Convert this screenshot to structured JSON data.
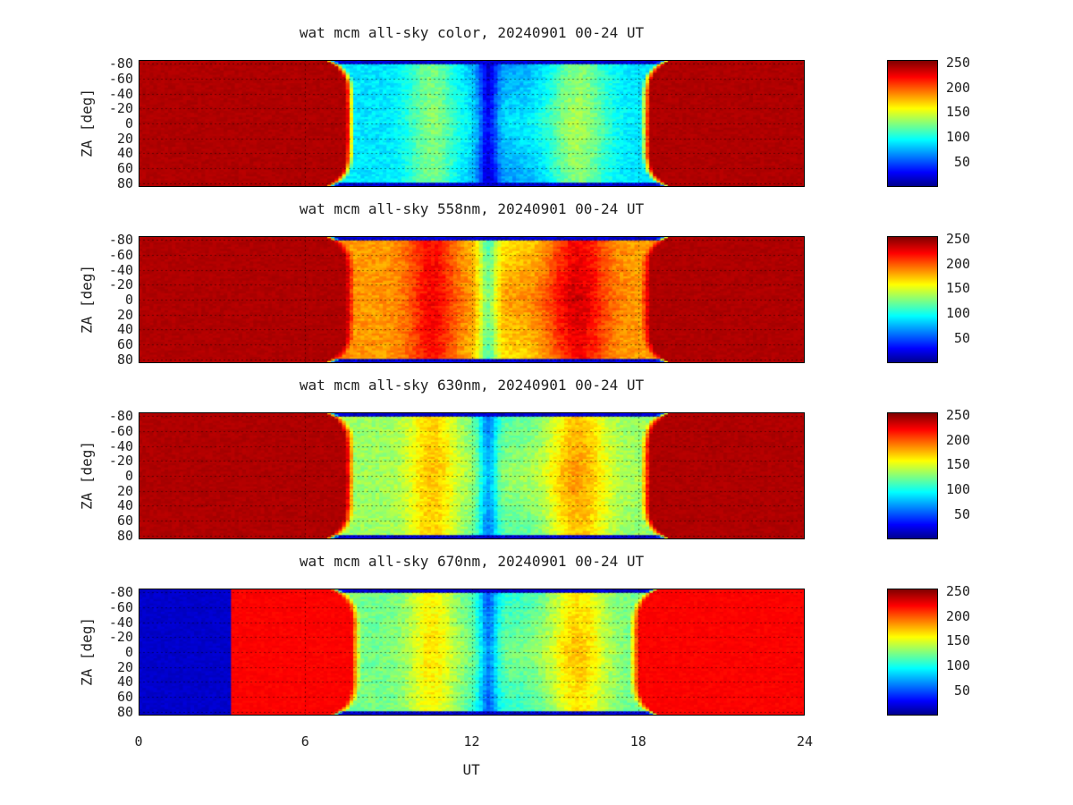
{
  "chart_data": [
    {
      "type": "heatmap",
      "title": "wat mcm all-sky color, 20240901 00-24 UT",
      "ylabel": "ZA [deg]",
      "xlabel": "UT",
      "xlim": [
        0,
        24
      ],
      "ylim": [
        -85,
        85
      ],
      "yticks": [
        "-80",
        "-60",
        "-40",
        "-20",
        "0",
        "20",
        "40",
        "60",
        "80"
      ],
      "xticks": [
        "0",
        "6",
        "12",
        "18",
        "24"
      ],
      "colorbar_ticks": [
        "50",
        "100",
        "150",
        "200",
        "250"
      ],
      "colorbar_range": [
        0,
        255
      ],
      "grid": true,
      "profile": {
        "sunset_ut": 7.5,
        "sunrise_ut": 18.4,
        "day_value": 240,
        "night_base": 90
      }
    },
    {
      "type": "heatmap",
      "title": "wat mcm all-sky 558nm, 20240901 00-24 UT",
      "ylabel": "ZA [deg]",
      "xlabel": "UT",
      "xlim": [
        0,
        24
      ],
      "ylim": [
        -85,
        85
      ],
      "yticks": [
        "-80",
        "-60",
        "-40",
        "-20",
        "0",
        "20",
        "40",
        "60",
        "80"
      ],
      "xticks": [
        "0",
        "6",
        "12",
        "18",
        "24"
      ],
      "colorbar_ticks": [
        "50",
        "100",
        "150",
        "200",
        "250"
      ],
      "colorbar_range": [
        0,
        255
      ],
      "grid": true,
      "profile": {
        "sunset_ut": 7.5,
        "sunrise_ut": 18.4,
        "day_value": 240,
        "night_base": 185
      }
    },
    {
      "type": "heatmap",
      "title": "wat mcm all-sky 630nm, 20240901 00-24 UT",
      "ylabel": "ZA [deg]",
      "xlabel": "UT",
      "xlim": [
        0,
        24
      ],
      "ylim": [
        -85,
        85
      ],
      "yticks": [
        "-80",
        "-60",
        "-40",
        "-20",
        "0",
        "20",
        "40",
        "60",
        "80"
      ],
      "xticks": [
        "0",
        "6",
        "12",
        "18",
        "24"
      ],
      "colorbar_ticks": [
        "50",
        "100",
        "150",
        "200",
        "250"
      ],
      "colorbar_range": [
        0,
        255
      ],
      "grid": true,
      "profile": {
        "sunset_ut": 7.5,
        "sunrise_ut": 18.4,
        "day_value": 240,
        "night_base": 135
      }
    },
    {
      "type": "heatmap",
      "title": "wat mcm all-sky 670nm, 20240901 00-24 UT",
      "ylabel": "ZA [deg]",
      "xlabel": "UT",
      "xlim": [
        0,
        24
      ],
      "ylim": [
        -85,
        85
      ],
      "yticks": [
        "-80",
        "-60",
        "-40",
        "-20",
        "0",
        "20",
        "40",
        "60",
        "80"
      ],
      "xticks": [
        "0",
        "6",
        "12",
        "18",
        "24"
      ],
      "colorbar_ticks": [
        "50",
        "100",
        "150",
        "200",
        "250"
      ],
      "colorbar_range": [
        0,
        255
      ],
      "grid": true,
      "profile": {
        "sunset_ut": 7.7,
        "sunrise_ut": 18.0,
        "day_value": 220,
        "night_base": 125,
        "missing_until_ut": 3.4,
        "missing_value": 15
      }
    }
  ],
  "colors": {
    "colormap": [
      "#00008f",
      "#0000ff",
      "#00ffff",
      "#ffff00",
      "#ff0000",
      "#800000"
    ]
  }
}
